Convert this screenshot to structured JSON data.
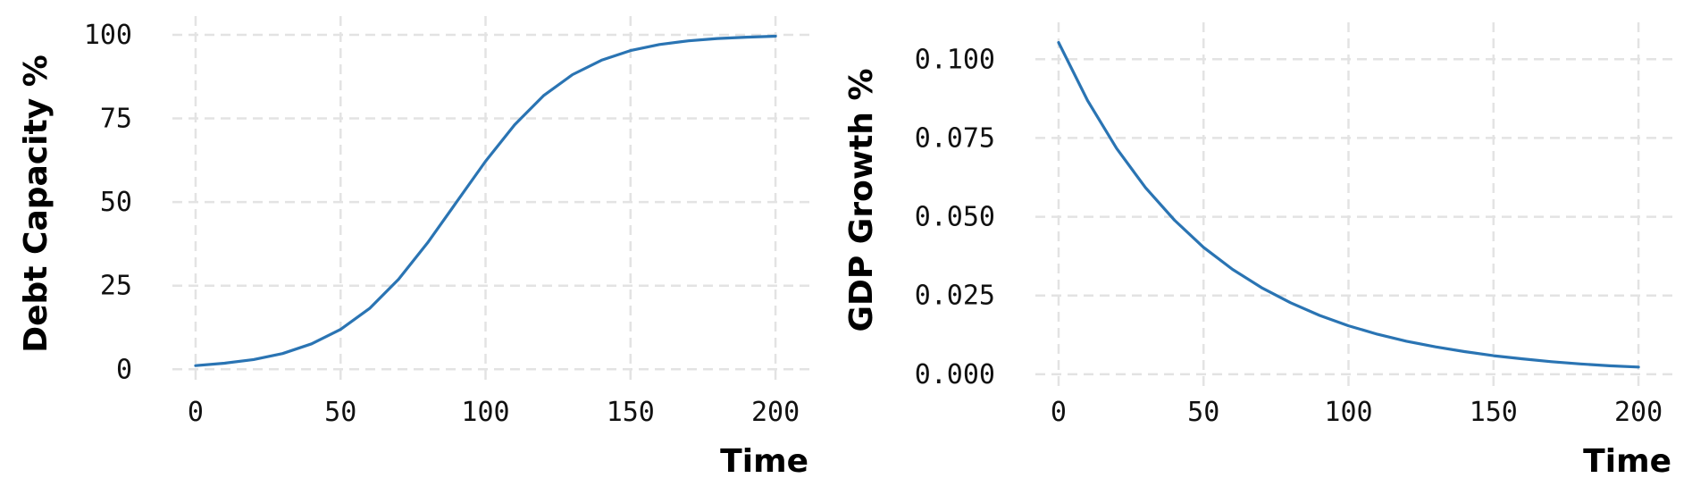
{
  "chart_data": [
    {
      "type": "line",
      "xlabel": "Time",
      "ylabel": "Debt Capacity %",
      "xlim": [
        -8,
        212
      ],
      "ylim": [
        -5,
        104
      ],
      "xticks": [
        0,
        50,
        100,
        150,
        200
      ],
      "xtick_labels": [
        "0",
        "50",
        "100",
        "150",
        "200"
      ],
      "yticks": [
        0,
        25,
        50,
        75,
        100
      ],
      "ytick_labels": [
        "0",
        "25",
        "50",
        "75",
        "100"
      ],
      "grid": true,
      "series": [
        {
          "color": "#2a74b3",
          "x": [
            0,
            10,
            20,
            30,
            40,
            50,
            60,
            70,
            80,
            90,
            100,
            110,
            120,
            130,
            140,
            150,
            160,
            170,
            180,
            190,
            200
          ],
          "y": [
            1.1,
            1.8,
            2.9,
            4.7,
            7.6,
            11.9,
            18.2,
            26.9,
            37.8,
            50.0,
            62.2,
            73.1,
            81.8,
            88.1,
            92.4,
            95.3,
            97.1,
            98.2,
            98.9,
            99.3,
            99.6
          ]
        }
      ]
    },
    {
      "type": "line",
      "xlabel": "Time",
      "ylabel": "GDP Growth %",
      "xlim": [
        -8,
        212
      ],
      "ylim": [
        -0.004,
        0.11
      ],
      "xticks": [
        0,
        50,
        100,
        150,
        200
      ],
      "xtick_labels": [
        "0",
        "50",
        "100",
        "150",
        "200"
      ],
      "yticks": [
        0.0,
        0.025,
        0.05,
        0.075,
        0.1
      ],
      "ytick_labels": [
        "0.000",
        "0.025",
        "0.050",
        "0.075",
        "0.100"
      ],
      "grid": true,
      "series": [
        {
          "color": "#2a74b3",
          "x": [
            0,
            10,
            20,
            30,
            40,
            50,
            60,
            70,
            80,
            90,
            100,
            110,
            120,
            130,
            140,
            150,
            160,
            170,
            180,
            190,
            200
          ],
          "y": [
            0.1053,
            0.0869,
            0.0717,
            0.0592,
            0.0489,
            0.0403,
            0.0333,
            0.0275,
            0.0227,
            0.0187,
            0.0154,
            0.0127,
            0.0105,
            0.0087,
            0.0072,
            0.0059,
            0.0049,
            0.004,
            0.0033,
            0.0027,
            0.0023
          ]
        }
      ]
    }
  ]
}
